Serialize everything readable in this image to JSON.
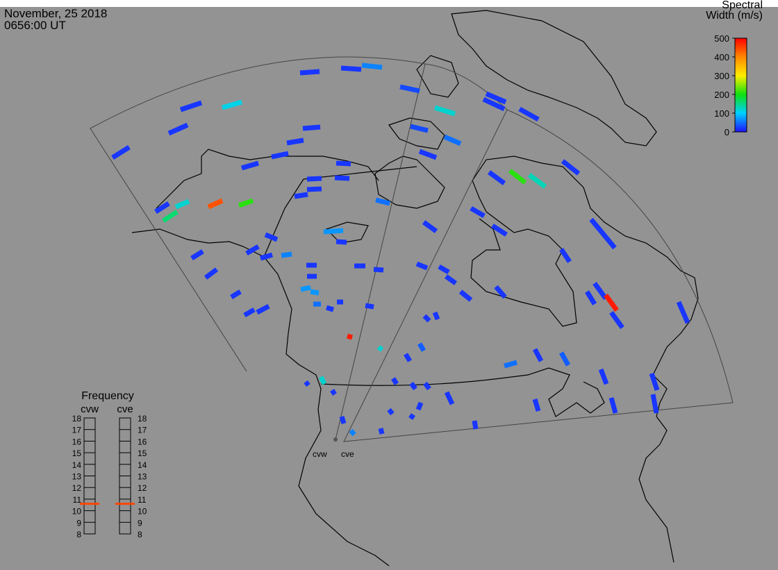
{
  "header": {
    "date": "November, 25 2018",
    "time": "0656:00 UT"
  },
  "colorbar": {
    "title_lines": [
      "Spectral",
      "Width (m/s)"
    ],
    "lim": [
      0,
      500
    ],
    "ticks": [
      0,
      100,
      200,
      300,
      400,
      500
    ],
    "colors": [
      "#1e10ff",
      "#00d0ff",
      "#10e010",
      "#ffee00",
      "#ff8800",
      "#ff0000"
    ]
  },
  "radars": [
    {
      "name": "cvw"
    },
    {
      "name": "cve"
    }
  ],
  "frequency": {
    "title": "Frequency",
    "lim": [
      8,
      18
    ],
    "ticks": [
      8,
      9,
      10,
      11,
      12,
      13,
      14,
      15,
      16,
      17,
      18
    ],
    "series": [
      {
        "name": "cvw",
        "value": 10.6,
        "color": "#ff4500"
      },
      {
        "name": "cve",
        "value": 10.6,
        "color": "#ff4500"
      }
    ]
  },
  "echoes": {
    "values": [
      20,
      20,
      60,
      30,
      20,
      110,
      20,
      20,
      20,
      20,
      20,
      20,
      20,
      20,
      20,
      20,
      20,
      120,
      30,
      50,
      20,
      20,
      20,
      20,
      20,
      210,
      130,
      20,
      20,
      160,
      120,
      440,
      210,
      50,
      20,
      20,
      20,
      20,
      70,
      20,
      20,
      20,
      20,
      20,
      20,
      60,
      20,
      20,
      20,
      20,
      20,
      20,
      20,
      20,
      20,
      480,
      20,
      20,
      20,
      20,
      20,
      70,
      70,
      50,
      20,
      20,
      20,
      20,
      20,
      480,
      120,
      50,
      20,
      40,
      20,
      20,
      20,
      20,
      20,
      20,
      20,
      20,
      120,
      20,
      20,
      20,
      60,
      20,
      20,
      20,
      20,
      20,
      20,
      20,
      20,
      40,
      20,
      20
    ]
  }
}
